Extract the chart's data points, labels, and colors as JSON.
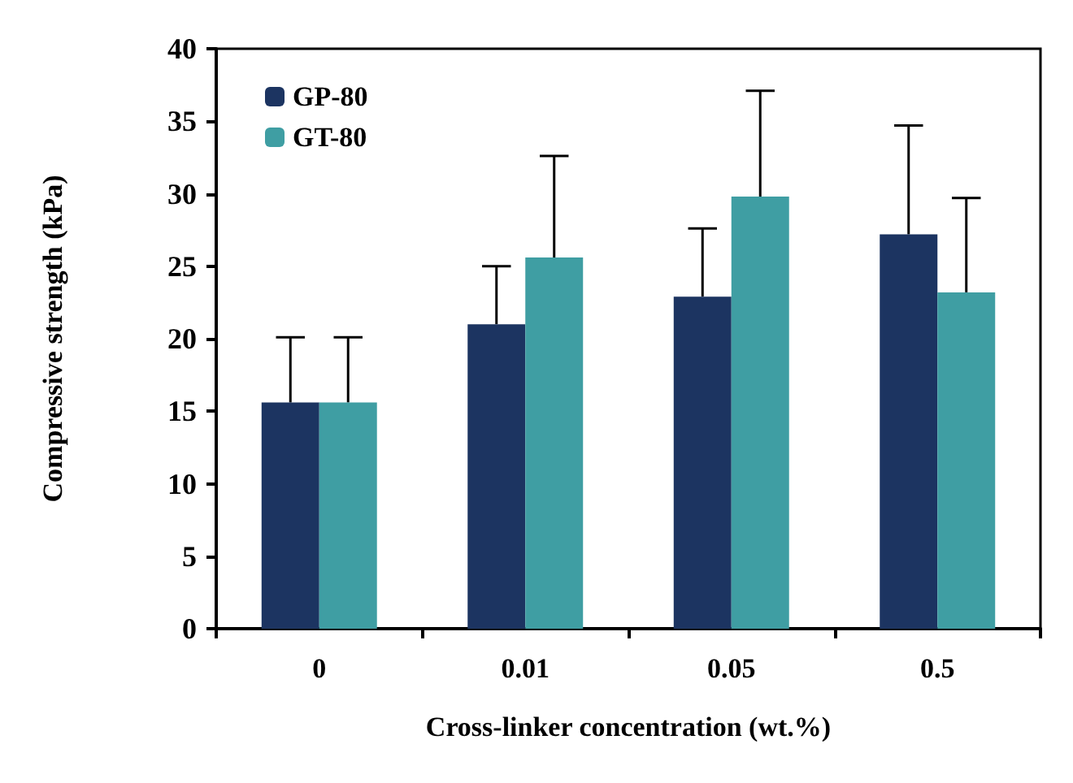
{
  "chart_data": {
    "type": "bar",
    "xlabel": "Cross-linker concentration (wt.%)",
    "ylabel": "Compressive strength (kPa)",
    "categories": [
      "0",
      "0.01",
      "0.05",
      "0.5"
    ],
    "series": [
      {
        "name": "GP-80",
        "color": "#1c3461",
        "values": [
          15.6,
          21.0,
          22.9,
          27.2
        ],
        "errors": [
          [
            15.6,
            20.1
          ],
          [
            21.0,
            25.0
          ],
          [
            22.9,
            27.6
          ],
          [
            27.2,
            34.7
          ]
        ]
      },
      {
        "name": "GT-80",
        "color": "#3f9ea3",
        "values": [
          15.6,
          25.6,
          29.8,
          23.2
        ],
        "errors": [
          [
            15.6,
            20.1
          ],
          [
            25.6,
            32.6
          ],
          [
            29.8,
            37.1
          ],
          [
            23.2,
            29.7
          ]
        ]
      }
    ],
    "ylim": [
      0,
      40
    ],
    "yticks": [
      0,
      5,
      10,
      15,
      20,
      25,
      30,
      35,
      40
    ],
    "grid": false,
    "legend": "top left"
  }
}
